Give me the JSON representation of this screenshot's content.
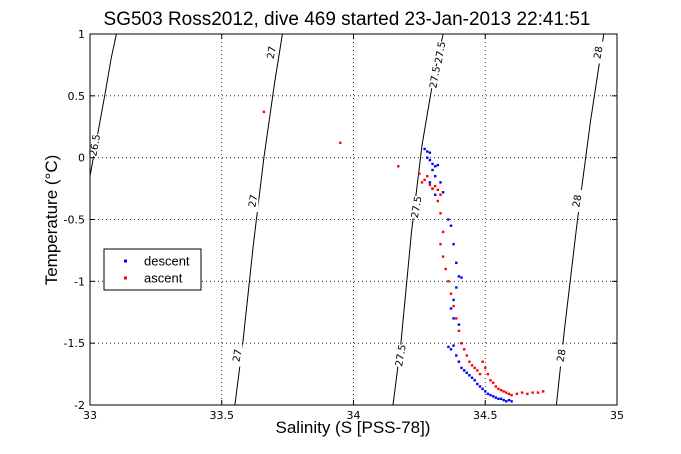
{
  "chart_data": {
    "type": "scatter",
    "title": "SG503 Ross2012, dive 469 started 23-Jan-2013 22:41:51",
    "xlabel": "Salinity (S [PSS-78])",
    "ylabel": "Temperature (°C)",
    "xlim": [
      33,
      35
    ],
    "ylim": [
      -2,
      1
    ],
    "x_ticks": [
      "33",
      "33.5",
      "34",
      "34.5",
      "35"
    ],
    "y_ticks": [
      "1",
      "0.5",
      "0",
      "-0.5",
      "-1",
      "-1.5",
      "-2"
    ],
    "grid": true,
    "legend_placement": "center-left",
    "contours": [
      {
        "label": "26.5",
        "points": [
          [
            33.0,
            -0.15
          ],
          [
            33.03,
            0.2
          ],
          [
            33.06,
            0.55
          ],
          [
            33.08,
            0.8
          ],
          [
            33.1,
            1.0
          ]
        ],
        "label_positions": [
          [
            33.02,
            0.1
          ]
        ]
      },
      {
        "label": "27",
        "points": [
          [
            33.55,
            -2.0
          ],
          [
            33.58,
            -1.5
          ],
          [
            33.62,
            -0.7
          ],
          [
            33.66,
            0.0
          ],
          [
            33.7,
            0.6
          ],
          [
            33.73,
            1.0
          ]
        ],
        "label_positions": [
          [
            33.56,
            -1.6
          ],
          [
            33.62,
            -0.35
          ],
          [
            33.69,
            0.85
          ]
        ]
      },
      {
        "label": "27.5",
        "points": [
          [
            34.15,
            -2.0
          ],
          [
            34.18,
            -1.5
          ],
          [
            34.22,
            -0.6
          ],
          [
            34.26,
            0.1
          ],
          [
            34.3,
            0.6
          ],
          [
            34.34,
            1.0
          ]
        ],
        "label_positions": [
          [
            34.18,
            -1.6
          ],
          [
            34.24,
            -0.4
          ],
          [
            34.31,
            0.65
          ],
          [
            34.33,
            0.85
          ]
        ]
      },
      {
        "label": "28",
        "points": [
          [
            34.77,
            -2.0
          ],
          [
            34.8,
            -1.4
          ],
          [
            34.85,
            -0.5
          ],
          [
            34.9,
            0.3
          ],
          [
            34.95,
            1.0
          ]
        ],
        "label_positions": [
          [
            34.79,
            -1.6
          ],
          [
            34.85,
            -0.35
          ],
          [
            34.93,
            0.85
          ]
        ]
      }
    ],
    "series": [
      {
        "name": "descent",
        "color": "#0000ff",
        "points": [
          [
            34.27,
            0.07
          ],
          [
            34.28,
            0.05
          ],
          [
            34.29,
            0.04
          ],
          [
            34.28,
            0.0
          ],
          [
            34.29,
            -0.02
          ],
          [
            34.3,
            -0.05
          ],
          [
            34.31,
            -0.07
          ],
          [
            34.32,
            -0.06
          ],
          [
            34.3,
            -0.1
          ],
          [
            34.31,
            -0.15
          ],
          [
            34.29,
            -0.2
          ],
          [
            34.3,
            -0.25
          ],
          [
            34.31,
            -0.3
          ],
          [
            34.33,
            -0.2
          ],
          [
            34.34,
            -0.28
          ],
          [
            34.36,
            -0.5
          ],
          [
            34.37,
            -0.55
          ],
          [
            34.38,
            -0.7
          ],
          [
            34.39,
            -0.85
          ],
          [
            34.4,
            -0.96
          ],
          [
            34.41,
            -0.97
          ],
          [
            34.39,
            -1.05
          ],
          [
            34.38,
            -1.15
          ],
          [
            34.37,
            -1.22
          ],
          [
            34.38,
            -1.3
          ],
          [
            34.4,
            -1.35
          ],
          [
            34.41,
            -1.5
          ],
          [
            34.36,
            -1.53
          ],
          [
            34.37,
            -1.55
          ],
          [
            34.38,
            -1.52
          ],
          [
            34.39,
            -1.6
          ],
          [
            34.4,
            -1.65
          ],
          [
            34.41,
            -1.7
          ],
          [
            34.42,
            -1.72
          ],
          [
            34.43,
            -1.74
          ],
          [
            34.44,
            -1.76
          ],
          [
            34.45,
            -1.78
          ],
          [
            34.46,
            -1.8
          ],
          [
            34.47,
            -1.83
          ],
          [
            34.48,
            -1.85
          ],
          [
            34.49,
            -1.87
          ],
          [
            34.5,
            -1.89
          ],
          [
            34.51,
            -1.91
          ],
          [
            34.52,
            -1.92
          ],
          [
            34.53,
            -1.93
          ],
          [
            34.54,
            -1.94
          ],
          [
            34.55,
            -1.95
          ],
          [
            34.56,
            -1.95
          ],
          [
            34.57,
            -1.96
          ],
          [
            34.58,
            -1.97
          ],
          [
            34.59,
            -1.96
          ],
          [
            34.6,
            -1.97
          ]
        ]
      },
      {
        "name": "ascent",
        "color": "#ff0000",
        "points": [
          [
            33.66,
            0.37
          ],
          [
            33.95,
            0.12
          ],
          [
            34.17,
            -0.07
          ],
          [
            34.25,
            -0.13
          ],
          [
            34.26,
            -0.2
          ],
          [
            34.27,
            -0.18
          ],
          [
            34.28,
            -0.15
          ],
          [
            34.29,
            -0.22
          ],
          [
            34.3,
            -0.25
          ],
          [
            34.31,
            -0.23
          ],
          [
            34.32,
            -0.26
          ],
          [
            34.33,
            -0.3
          ],
          [
            34.32,
            -0.35
          ],
          [
            34.33,
            -0.45
          ],
          [
            34.34,
            -0.6
          ],
          [
            34.33,
            -0.7
          ],
          [
            34.34,
            -0.8
          ],
          [
            34.35,
            -0.9
          ],
          [
            34.36,
            -1.0
          ],
          [
            34.37,
            -1.1
          ],
          [
            34.38,
            -1.2
          ],
          [
            34.39,
            -1.3
          ],
          [
            34.4,
            -1.4
          ],
          [
            34.41,
            -1.5
          ],
          [
            34.42,
            -1.55
          ],
          [
            34.43,
            -1.6
          ],
          [
            34.44,
            -1.65
          ],
          [
            34.45,
            -1.68
          ],
          [
            34.46,
            -1.7
          ],
          [
            34.47,
            -1.72
          ],
          [
            34.48,
            -1.75
          ],
          [
            34.49,
            -1.65
          ],
          [
            34.5,
            -1.7
          ],
          [
            34.51,
            -1.75
          ],
          [
            34.52,
            -1.8
          ],
          [
            34.53,
            -1.82
          ],
          [
            34.54,
            -1.85
          ],
          [
            34.55,
            -1.87
          ],
          [
            34.56,
            -1.88
          ],
          [
            34.57,
            -1.89
          ],
          [
            34.58,
            -1.9
          ],
          [
            34.59,
            -1.91
          ],
          [
            34.6,
            -1.92
          ],
          [
            34.62,
            -1.91
          ],
          [
            34.64,
            -1.9
          ],
          [
            34.66,
            -1.91
          ],
          [
            34.68,
            -1.9
          ],
          [
            34.7,
            -1.9
          ],
          [
            34.72,
            -1.89
          ]
        ]
      }
    ]
  }
}
